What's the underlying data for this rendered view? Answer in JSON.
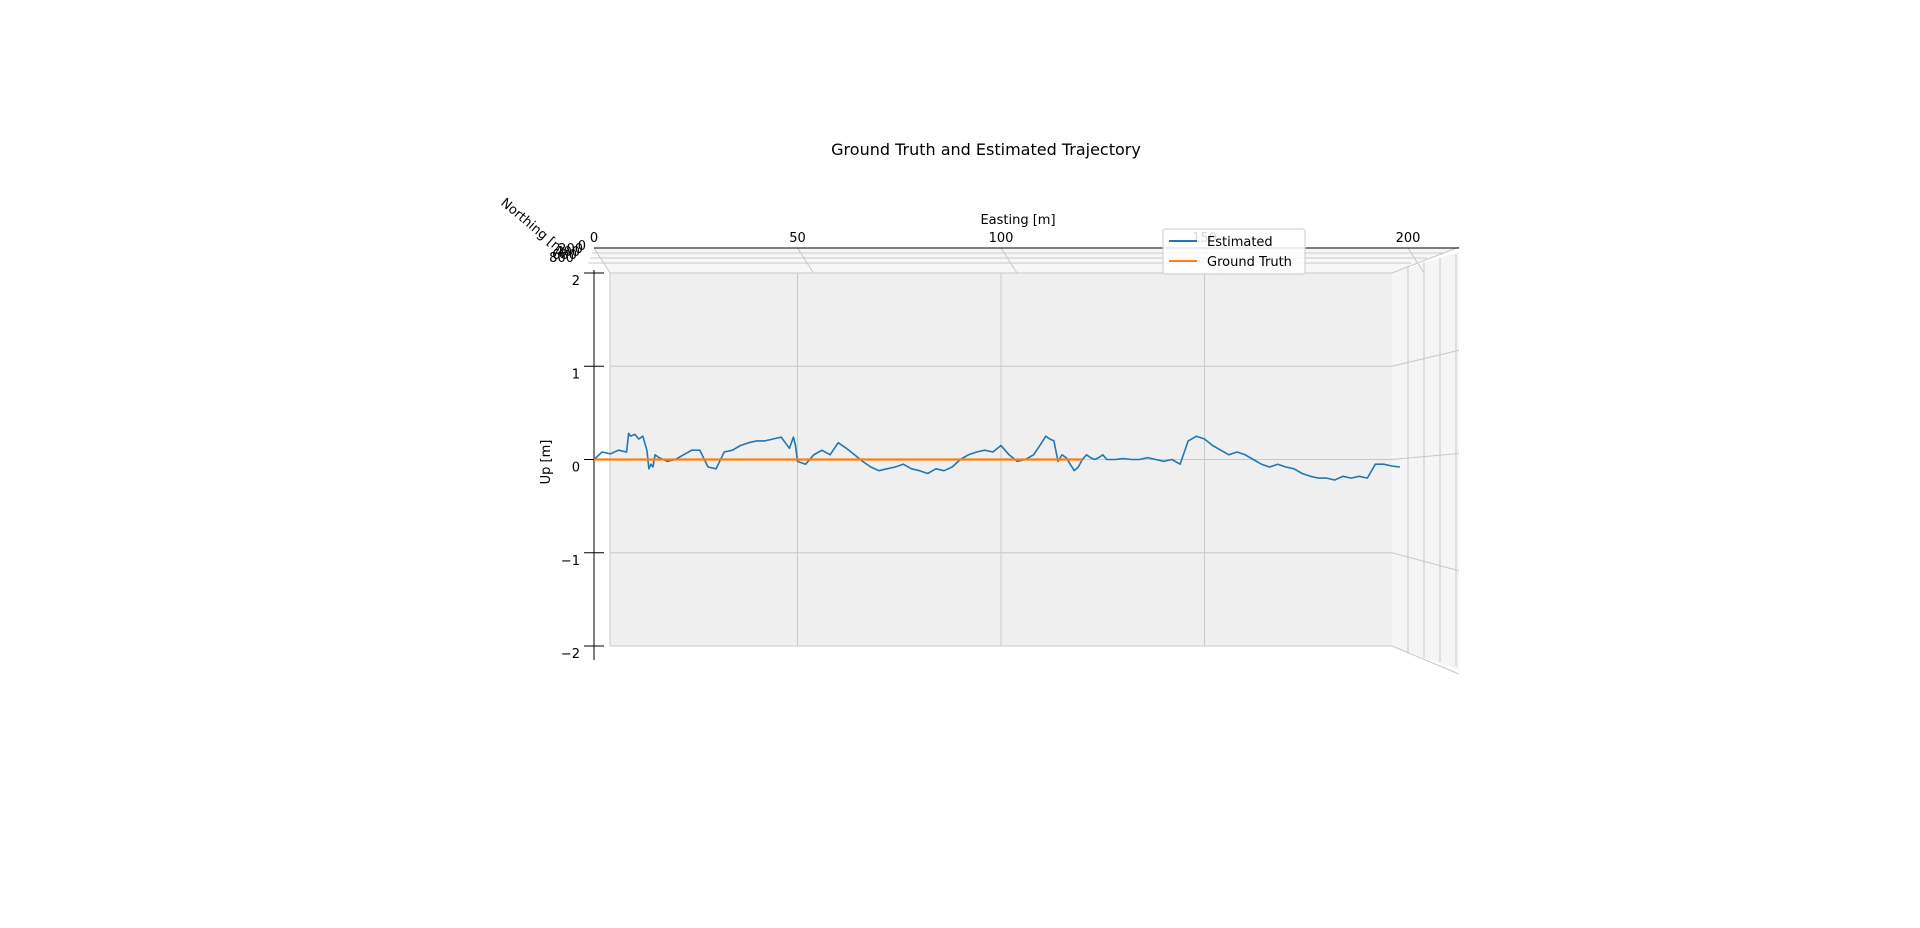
{
  "chart_data": {
    "type": "line",
    "title": "Ground Truth and Estimated Trajectory",
    "xlabel": "Easting [m]",
    "ylabel": "Northing [m]",
    "zlabel": "Up [m]",
    "xlim": [
      0,
      200
    ],
    "zlim": [
      -2,
      2
    ],
    "x_ticks": [
      "0",
      "50",
      "100",
      "150",
      "200"
    ],
    "y_ticks": [
      "0",
      "200",
      "400",
      "600",
      "800"
    ],
    "z_ticks": [
      "2",
      "1",
      "0",
      "−1",
      "−2"
    ],
    "z_tick_values": [
      2,
      1,
      0,
      -1,
      -2
    ],
    "grid": true,
    "legend_position": "top-right",
    "series": [
      {
        "name": "Estimated",
        "color": "#1f77b4",
        "x": [
          0,
          2,
          4,
          6,
          8,
          8.5,
          9,
          10,
          11,
          12,
          13,
          13.5,
          14,
          14.5,
          15,
          16,
          18,
          20,
          22,
          24,
          26,
          28,
          30,
          32,
          34,
          36,
          38,
          40,
          42,
          44,
          46,
          48,
          49,
          49.5,
          50,
          52,
          54,
          56,
          58,
          60,
          62,
          64,
          66,
          68,
          70,
          72,
          74,
          76,
          78,
          80,
          82,
          84,
          86,
          88,
          90,
          92,
          94,
          96,
          98,
          100,
          102,
          104,
          106,
          108,
          110,
          111,
          112,
          113,
          114,
          115,
          116,
          117,
          118,
          119,
          120,
          121,
          122,
          123,
          124,
          125,
          126,
          128,
          130,
          132,
          134,
          136,
          138,
          140,
          142,
          144,
          146,
          148,
          150,
          152,
          154,
          156,
          158,
          160,
          162,
          164,
          166,
          168,
          170,
          172,
          174,
          176,
          178,
          180,
          182,
          184,
          186,
          188,
          190,
          192,
          194,
          196,
          198
        ],
        "z": [
          0,
          0.08,
          0.06,
          0.1,
          0.08,
          0.28,
          0.25,
          0.27,
          0.22,
          0.25,
          0.1,
          -0.1,
          -0.05,
          -0.08,
          0.05,
          0.02,
          -0.02,
          0.0,
          0.05,
          0.1,
          0.1,
          -0.08,
          -0.1,
          0.08,
          0.1,
          0.15,
          0.18,
          0.2,
          0.2,
          0.22,
          0.24,
          0.12,
          0.24,
          0.15,
          -0.02,
          -0.05,
          0.05,
          0.1,
          0.05,
          0.18,
          0.12,
          0.05,
          -0.02,
          -0.08,
          -0.12,
          -0.1,
          -0.08,
          -0.05,
          -0.1,
          -0.12,
          -0.15,
          -0.1,
          -0.12,
          -0.08,
          0.0,
          0.05,
          0.08,
          0.1,
          0.08,
          0.15,
          0.05,
          -0.02,
          0.0,
          0.05,
          0.18,
          0.25,
          0.22,
          0.2,
          -0.02,
          0.05,
          0.02,
          -0.05,
          -0.12,
          -0.08,
          0.0,
          0.05,
          0.02,
          0.0,
          0.02,
          0.05,
          0.0,
          0.0,
          0.01,
          0.0,
          0.0,
          0.02,
          0.0,
          -0.02,
          0.0,
          -0.05,
          0.2,
          0.25,
          0.22,
          0.15,
          0.1,
          0.05,
          0.08,
          0.05,
          0.0,
          -0.05,
          -0.08,
          -0.05,
          -0.08,
          -0.1,
          -0.15,
          -0.18,
          -0.2,
          -0.2,
          -0.22,
          -0.18,
          -0.2,
          -0.18,
          -0.2,
          -0.05,
          -0.05,
          -0.07,
          -0.08
        ]
      },
      {
        "name": "Ground Truth",
        "color": "#ff7f0e",
        "x": [
          0,
          20,
          40,
          60,
          80,
          100,
          120
        ],
        "z": [
          0,
          0,
          0,
          0,
          0,
          0,
          0
        ]
      }
    ]
  }
}
